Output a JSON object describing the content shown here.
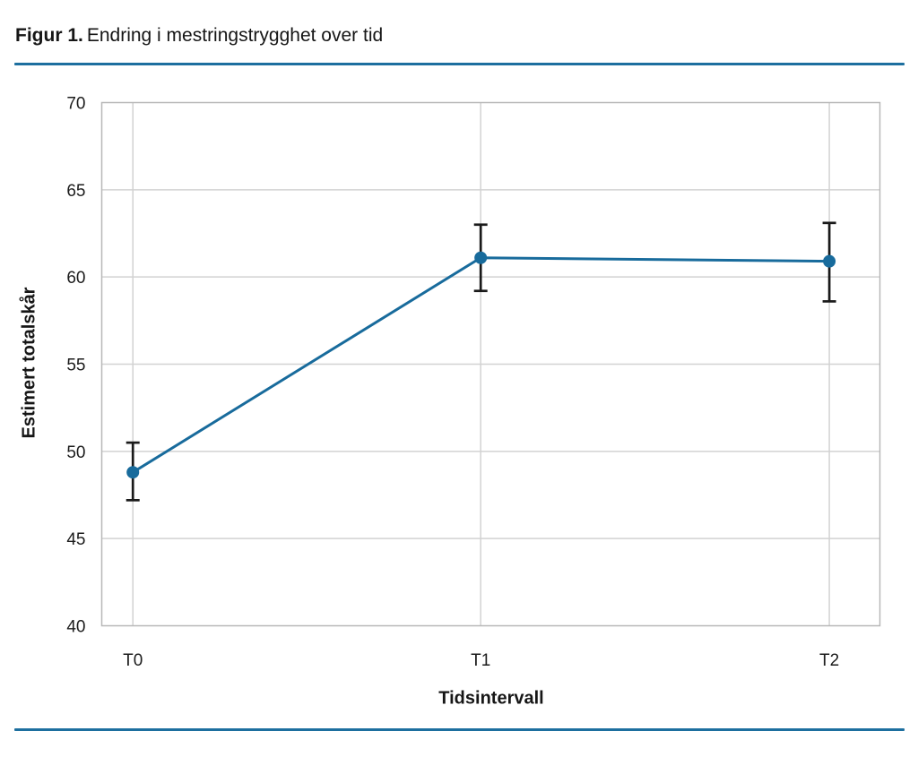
{
  "page": {
    "title_prefix": "Figur 1.",
    "title_text": "Endring i mestringstrygghet over tid"
  },
  "colors": {
    "accent_blue": "#186b9c",
    "divider_blue": "#1d6f9f",
    "error_bar": "#1a1a1a",
    "grid": "#d2d2d2",
    "plot_border": "#b8b8b8",
    "text": "#1c1c1c"
  },
  "chart_data": {
    "type": "line",
    "title": "Endring i mestringstrygghet over tid",
    "xlabel": "Tidsintervall",
    "ylabel": "Estimert totalskår",
    "categories": [
      "T0",
      "T1",
      "T2"
    ],
    "series": [
      {
        "name": "Estimert totalskår",
        "values": [
          48.8,
          61.1,
          60.9
        ],
        "ci_low": [
          47.2,
          59.2,
          58.6
        ],
        "ci_high": [
          50.5,
          63.0,
          63.1
        ]
      }
    ],
    "ylim": [
      40,
      70
    ],
    "yticks": [
      40,
      45,
      50,
      55,
      60,
      65,
      70
    ],
    "grid": true,
    "legend": false,
    "error_bars": true,
    "marker": "circle"
  }
}
